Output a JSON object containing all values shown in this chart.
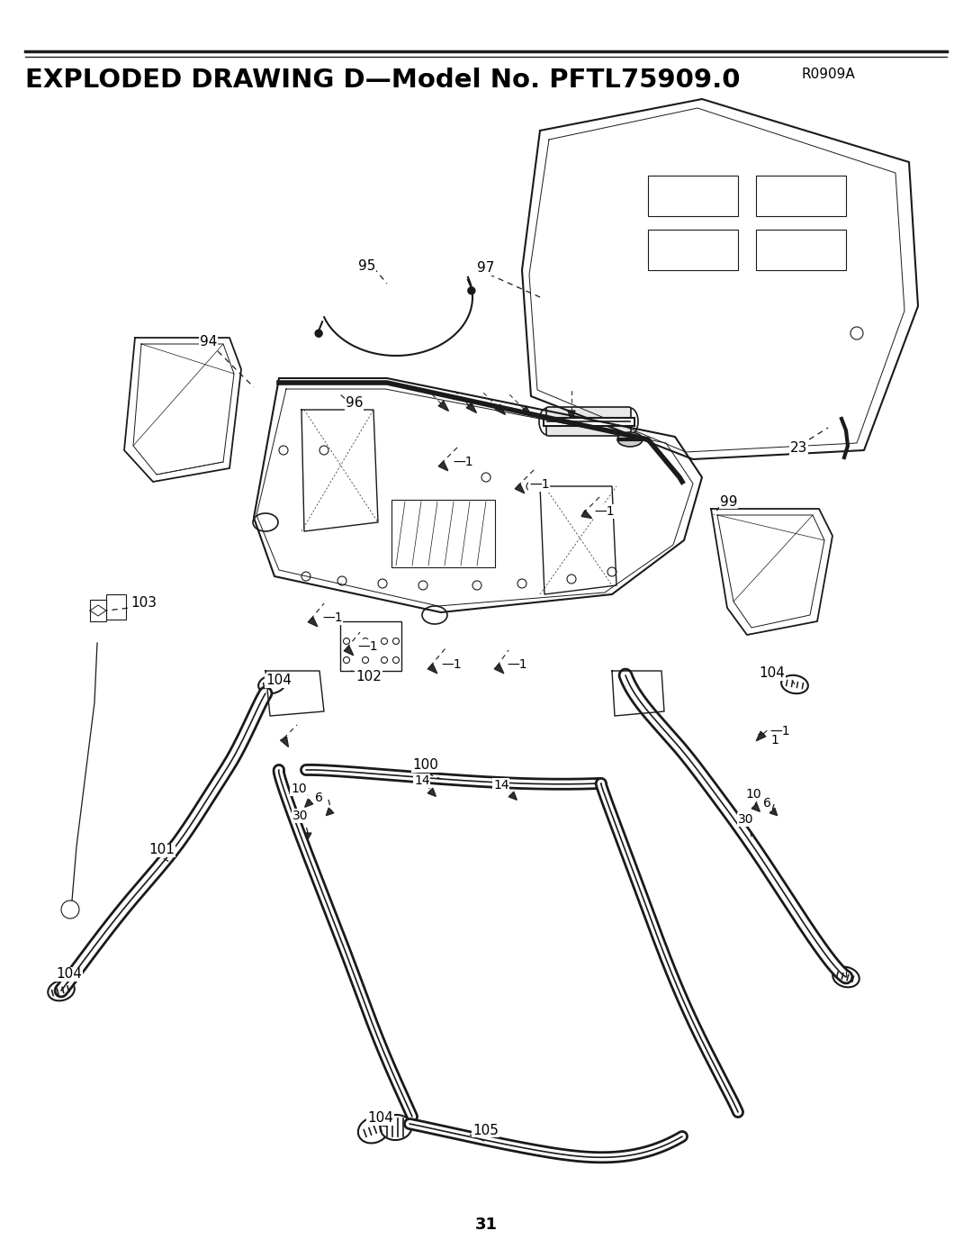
{
  "title": "EXPLODED DRAWING D—Model No. PFTL75909.0",
  "subtitle": "R0909A",
  "page_number": "31",
  "bg_color": "#ffffff",
  "line_color": "#1a1a1a",
  "title_fontsize": 21,
  "subtitle_fontsize": 11,
  "page_fontsize": 13
}
